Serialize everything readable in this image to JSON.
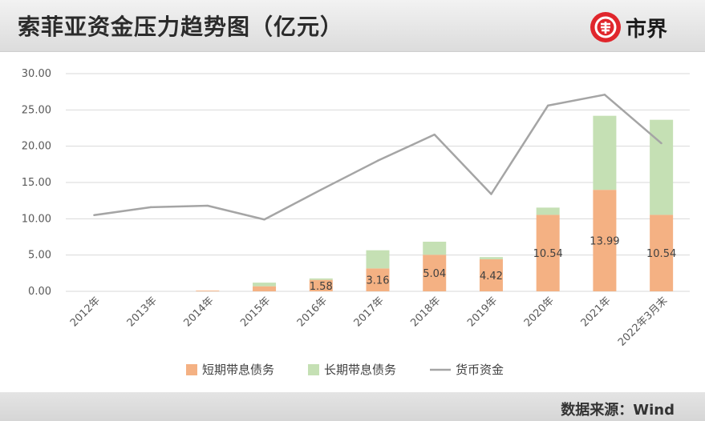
{
  "header": {
    "title": "索菲亚资金压力趋势图（亿元）",
    "brand": "市界"
  },
  "footer": {
    "source": "数据来源：Wind"
  },
  "colors": {
    "short_debt": "#f4b183",
    "long_debt": "#c5e0b4",
    "cash": "#a5a5a5",
    "brand_red": "#e0262c"
  },
  "chart_data": {
    "type": "bar",
    "stacked": true,
    "categories": [
      "2012年",
      "2013年",
      "2014年",
      "2015年",
      "2016年",
      "2017年",
      "2018年",
      "2019年",
      "2020年",
      "2021年",
      "2022年3月末"
    ],
    "series": [
      {
        "name": "短期带息债务",
        "type": "bar",
        "values": [
          0,
          0,
          0.1,
          0.7,
          1.58,
          3.16,
          5.04,
          4.42,
          10.54,
          13.99,
          10.54
        ],
        "labels": [
          "",
          "",
          "",
          "",
          "1.58",
          "3.16",
          "5.04",
          "4.42",
          "10.54",
          "13.99",
          "10.54"
        ]
      },
      {
        "name": "长期带息债务",
        "type": "bar",
        "values": [
          0,
          0,
          0,
          0.5,
          0.2,
          2.5,
          1.8,
          0.3,
          1.0,
          10.2,
          13.1
        ]
      },
      {
        "name": "货币资金",
        "type": "line",
        "values": [
          10.5,
          11.6,
          11.8,
          9.9,
          14.0,
          18.0,
          21.6,
          13.4,
          25.6,
          27.1,
          20.4
        ]
      }
    ],
    "y_ticks": [
      "0.00",
      "5.00",
      "10.00",
      "15.00",
      "20.00",
      "25.00",
      "30.00"
    ],
    "ylim": [
      0,
      30
    ],
    "grid": true,
    "legend_position": "bottom"
  }
}
